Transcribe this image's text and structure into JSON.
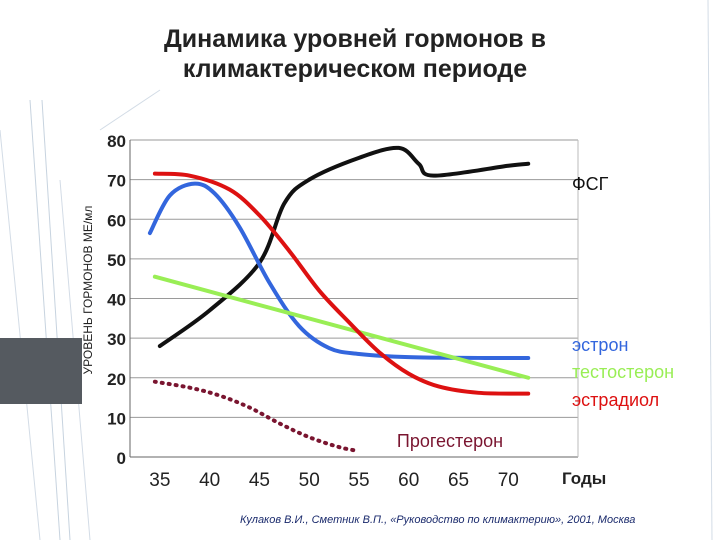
{
  "slide": {
    "title_line1": "Динамика уровней гормонов в",
    "title_line2": "климактерическом периоде",
    "source": "Кулаков В.И., Сметник В.П., «Руководство по климактерию», 2001, Москва"
  },
  "chart_data": {
    "type": "line",
    "title": "Динамика уровней гормонов в климактерическом периоде",
    "xlabel": "Годы",
    "ylabel": "УРОВЕНЬ ГОРМОНОВ МЕ/мл",
    "xlim": [
      32,
      77
    ],
    "ylim": [
      0,
      80
    ],
    "x_ticks": [
      35,
      40,
      45,
      50,
      55,
      60,
      65,
      70
    ],
    "y_ticks": [
      0,
      10,
      20,
      30,
      40,
      50,
      60,
      70,
      80
    ],
    "grid": "horizontal",
    "series": [
      {
        "name": "ФСГ",
        "color": "#111111",
        "style": "solid",
        "points": [
          [
            35,
            28
          ],
          [
            40,
            37
          ],
          [
            45,
            49
          ],
          [
            47.5,
            64
          ],
          [
            50,
            70
          ],
          [
            55,
            75.5
          ],
          [
            59,
            78
          ],
          [
            61,
            74
          ],
          [
            62.5,
            71
          ],
          [
            70,
            73.5
          ],
          [
            72,
            74
          ]
        ]
      },
      {
        "name": "эстрон",
        "color": "#3366dd",
        "style": "solid",
        "points": [
          [
            34,
            56.5
          ],
          [
            36,
            66
          ],
          [
            38.5,
            69
          ],
          [
            40.5,
            66.5
          ],
          [
            43,
            58
          ],
          [
            46,
            44
          ],
          [
            49,
            33
          ],
          [
            52,
            27.5
          ],
          [
            55,
            26
          ],
          [
            60,
            25.2
          ],
          [
            67,
            25
          ],
          [
            72,
            25
          ]
        ]
      },
      {
        "name": "тестостерон",
        "color": "#99ee55",
        "style": "solid",
        "points": [
          [
            34.5,
            45.5
          ],
          [
            72,
            20
          ]
        ]
      },
      {
        "name": "эстрадиол",
        "color": "#dd1111",
        "style": "solid",
        "points": [
          [
            34.5,
            71.5
          ],
          [
            38,
            71
          ],
          [
            42,
            67.5
          ],
          [
            45,
            61
          ],
          [
            48,
            52
          ],
          [
            51,
            42
          ],
          [
            54,
            34
          ],
          [
            57,
            26.5
          ],
          [
            60,
            21
          ],
          [
            63,
            17.8
          ],
          [
            67,
            16.2
          ],
          [
            72,
            16
          ]
        ]
      },
      {
        "name": "Прогестерон",
        "color": "#7a1530",
        "style": "dotted",
        "points": [
          [
            34.5,
            19
          ],
          [
            38,
            17.5
          ],
          [
            41,
            15.5
          ],
          [
            44,
            12.5
          ],
          [
            47,
            8.5
          ],
          [
            50,
            5
          ],
          [
            53,
            2.5
          ],
          [
            55,
            1.5
          ]
        ]
      }
    ],
    "labels": [
      {
        "text": "ФСГ",
        "color": "#111111"
      },
      {
        "text": "эстрон",
        "color": "#3366dd"
      },
      {
        "text": "тестостерон",
        "color": "#99ee55"
      },
      {
        "text": "эстрадиол",
        "color": "#dd1111"
      },
      {
        "text": "Прогестерон",
        "color": "#7a1530"
      }
    ]
  }
}
